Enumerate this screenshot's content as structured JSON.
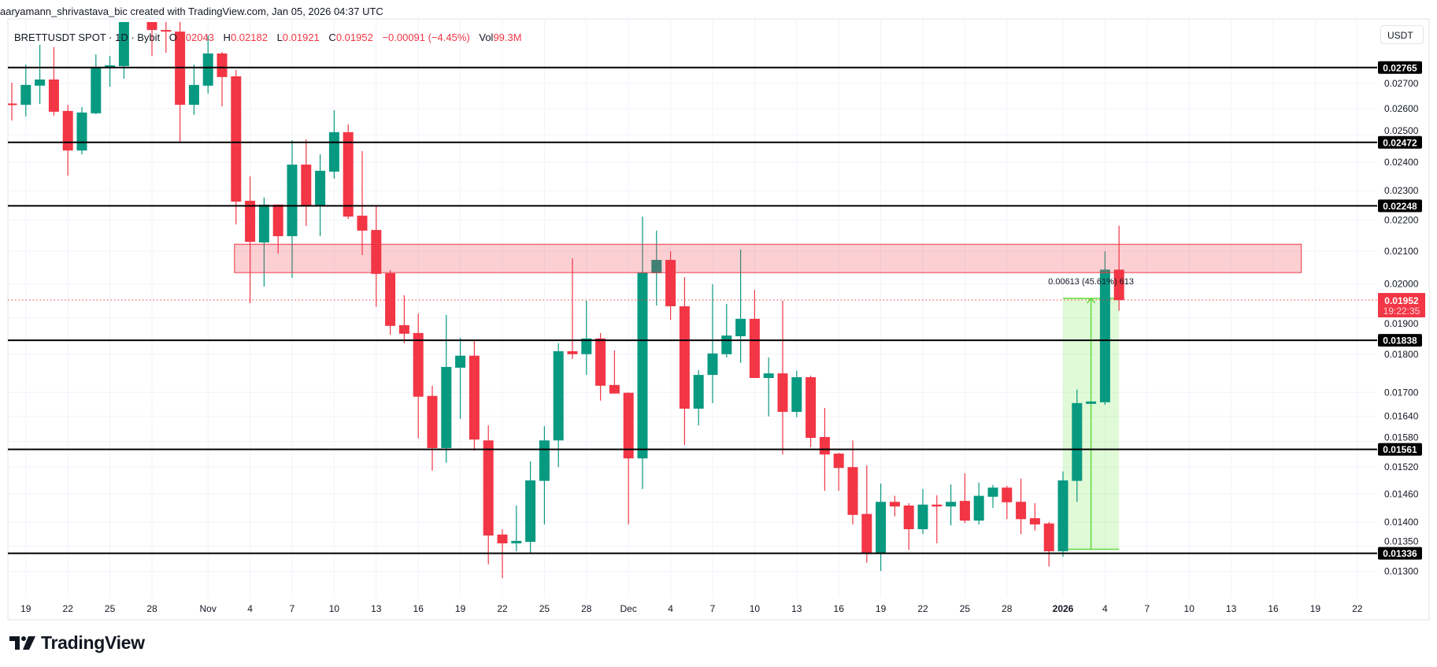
{
  "header": {
    "title": "aaryamann_shrivastava_bic created with TradingView.com, Jan 05, 2026 04:37 UTC"
  },
  "legend": {
    "symbol": "BRETTUSDT SPOT · 1D · Bybit",
    "open_label": "O",
    "open": "0.02043",
    "high_label": "H",
    "high": "0.02182",
    "low_label": "L",
    "low": "0.01921",
    "close_label": "C",
    "close": "0.01952",
    "change": "−0.00091 (−4.45%)",
    "vol_label": "Vol",
    "vol": "99.3M"
  },
  "price_axis": {
    "unit_button": "USDT"
  },
  "footer": {
    "logo_text": "TradingView"
  },
  "colors": {
    "up": "#089981",
    "down": "#f23645",
    "level_line": "#000000",
    "zone_fill": "#f23645",
    "measure": "#5fdc3c"
  },
  "chart_data": {
    "type": "candlestick",
    "title": "",
    "y_scale": "log",
    "ylim": [
      0.0125,
      0.0296
    ],
    "grid": true,
    "y_ticks": [
      "0.02700",
      "0.02600",
      "0.02500",
      "0.02400",
      "0.02300",
      "0.02200",
      "0.02100",
      "0.02000",
      "0.01900",
      "0.01800",
      "0.01700",
      "0.01640",
      "0.01580",
      "0.01520",
      "0.01460",
      "0.01400",
      "0.01350",
      "0.01300"
    ],
    "x_ticks": [
      {
        "label": "19",
        "date": "2025-10-19"
      },
      {
        "label": "22",
        "date": "2025-10-22"
      },
      {
        "label": "25",
        "date": "2025-10-25"
      },
      {
        "label": "28",
        "date": "2025-10-28"
      },
      {
        "label": "Nov",
        "date": "2025-11-01"
      },
      {
        "label": "4",
        "date": "2025-11-04"
      },
      {
        "label": "7",
        "date": "2025-11-07"
      },
      {
        "label": "10",
        "date": "2025-11-10"
      },
      {
        "label": "13",
        "date": "2025-11-13"
      },
      {
        "label": "16",
        "date": "2025-11-16"
      },
      {
        "label": "19",
        "date": "2025-11-19"
      },
      {
        "label": "22",
        "date": "2025-11-22"
      },
      {
        "label": "25",
        "date": "2025-11-25"
      },
      {
        "label": "28",
        "date": "2025-11-28"
      },
      {
        "label": "Dec",
        "date": "2025-12-01"
      },
      {
        "label": "4",
        "date": "2025-12-04"
      },
      {
        "label": "7",
        "date": "2025-12-07"
      },
      {
        "label": "10",
        "date": "2025-12-10"
      },
      {
        "label": "13",
        "date": "2025-12-13"
      },
      {
        "label": "16",
        "date": "2025-12-16"
      },
      {
        "label": "19",
        "date": "2025-12-19"
      },
      {
        "label": "22",
        "date": "2025-12-22"
      },
      {
        "label": "25",
        "date": "2025-12-25"
      },
      {
        "label": "28",
        "date": "2025-12-28"
      },
      {
        "label": "2026",
        "date": "2026-01-01"
      },
      {
        "label": "4",
        "date": "2026-01-04"
      },
      {
        "label": "7",
        "date": "2026-01-07"
      },
      {
        "label": "10",
        "date": "2026-01-10"
      },
      {
        "label": "13",
        "date": "2026-01-13"
      },
      {
        "label": "16",
        "date": "2026-01-16"
      },
      {
        "label": "19",
        "date": "2026-01-19"
      },
      {
        "label": "22",
        "date": "2026-01-22"
      }
    ],
    "first_date": "2025-10-18",
    "candles": [
      [
        0.0262,
        0.02703,
        0.02554,
        0.02618
      ],
      [
        0.02615,
        0.02777,
        0.0257,
        0.02694
      ],
      [
        0.02691,
        0.02861,
        0.02618,
        0.02716
      ],
      [
        0.02716,
        0.02851,
        0.02573,
        0.02588
      ],
      [
        0.02591,
        0.02615,
        0.02352,
        0.02442
      ],
      [
        0.02442,
        0.02606,
        0.02428,
        0.02585
      ],
      [
        0.02582,
        0.0282,
        0.02579,
        0.02768
      ],
      [
        0.02771,
        0.02814,
        0.02687,
        0.02774
      ],
      [
        0.02771,
        0.0315,
        0.02719,
        0.031
      ],
      [
        0.031,
        0.032,
        0.0299,
        0.0302
      ],
      [
        0.0302,
        0.0308,
        0.02814,
        0.02925
      ],
      [
        0.02925,
        0.0299,
        0.02827,
        0.02918
      ],
      [
        0.02918,
        0.0298,
        0.02474,
        0.02615
      ],
      [
        0.02615,
        0.02777,
        0.02576,
        0.02694
      ],
      [
        0.02691,
        0.02902,
        0.02659,
        0.02824
      ],
      [
        0.02824,
        0.0283,
        0.02609,
        0.02726
      ],
      [
        0.02729,
        0.02755,
        0.02186,
        0.02262
      ],
      [
        0.02265,
        0.02349,
        0.01943,
        0.0213
      ],
      [
        0.02128,
        0.02276,
        0.01992,
        0.02252
      ],
      [
        0.02252,
        0.02252,
        0.02093,
        0.02148
      ],
      [
        0.02148,
        0.0248,
        0.02018,
        0.02391
      ],
      [
        0.02391,
        0.02483,
        0.02181,
        0.02249
      ],
      [
        0.02249,
        0.02428,
        0.02148,
        0.02369
      ],
      [
        0.02366,
        0.02594,
        0.02341,
        0.0251
      ],
      [
        0.0251,
        0.02539,
        0.02204,
        0.02212
      ],
      [
        0.02215,
        0.0244,
        0.02088,
        0.02166
      ],
      [
        0.02168,
        0.02249,
        0.01932,
        0.0203
      ],
      [
        0.02032,
        0.02042,
        0.01853,
        0.01878
      ],
      [
        0.0188,
        0.01966,
        0.0183,
        0.01856
      ],
      [
        0.01858,
        0.01913,
        0.01587,
        0.01689
      ],
      [
        0.01691,
        0.01717,
        0.01512,
        0.01564
      ],
      [
        0.01564,
        0.01909,
        0.0153,
        0.01766
      ],
      [
        0.01764,
        0.01845,
        0.01634,
        0.01796
      ],
      [
        0.01796,
        0.01836,
        0.01558,
        0.01584
      ],
      [
        0.01582,
        0.01618,
        0.01314,
        0.01372
      ],
      [
        0.01374,
        0.01385,
        0.01287,
        0.01356
      ],
      [
        0.01356,
        0.01435,
        0.0134,
        0.01361
      ],
      [
        0.01359,
        0.01533,
        0.01337,
        0.0149
      ],
      [
        0.01489,
        0.01616,
        0.01395,
        0.01582
      ],
      [
        0.01582,
        0.0183,
        0.0152,
        0.01808
      ],
      [
        0.01808,
        0.02078,
        0.01787,
        0.018
      ],
      [
        0.018,
        0.0195,
        0.01745,
        0.01843
      ],
      [
        0.01843,
        0.01858,
        0.01679,
        0.01717
      ],
      [
        0.01719,
        0.0181,
        0.01697,
        0.01697
      ],
      [
        0.01699,
        0.017,
        0.01395,
        0.0154
      ],
      [
        0.0154,
        0.02212,
        0.01471,
        0.02034
      ],
      [
        0.02032,
        0.02166,
        0.01936,
        0.02073
      ],
      [
        0.02073,
        0.021,
        0.01895,
        0.01934
      ],
      [
        0.01934,
        0.0202,
        0.01571,
        0.01659
      ],
      [
        0.01659,
        0.01758,
        0.01618,
        0.01745
      ],
      [
        0.01745,
        0.01999,
        0.01673,
        0.01802
      ],
      [
        0.018,
        0.01941,
        0.01791,
        0.01851
      ],
      [
        0.01849,
        0.02105,
        0.01777,
        0.01898
      ],
      [
        0.01898,
        0.01982,
        0.01737,
        0.01737
      ],
      [
        0.01737,
        0.01791,
        0.0164,
        0.01749
      ],
      [
        0.01749,
        0.0195,
        0.01549,
        0.01651
      ],
      [
        0.01651,
        0.01756,
        0.01638,
        0.01739
      ],
      [
        0.01739,
        0.01743,
        0.01566,
        0.01588
      ],
      [
        0.0159,
        0.01661,
        0.01467,
        0.01549
      ],
      [
        0.01551,
        0.01553,
        0.01467,
        0.01518
      ],
      [
        0.0152,
        0.01582,
        0.01395,
        0.01415
      ],
      [
        0.01417,
        0.01524,
        0.01317,
        0.01335
      ],
      [
        0.01335,
        0.01483,
        0.01301,
        0.01443
      ],
      [
        0.01443,
        0.01456,
        0.01412,
        0.01433
      ],
      [
        0.01435,
        0.0144,
        0.01343,
        0.01385
      ],
      [
        0.01385,
        0.01471,
        0.01375,
        0.01437
      ],
      [
        0.01437,
        0.01457,
        0.01356,
        0.01433
      ],
      [
        0.01433,
        0.01481,
        0.01393,
        0.01443
      ],
      [
        0.01445,
        0.01506,
        0.01398,
        0.01403
      ],
      [
        0.01403,
        0.01485,
        0.01395,
        0.01456
      ],
      [
        0.01454,
        0.0148,
        0.0143,
        0.01474
      ],
      [
        0.01474,
        0.01478,
        0.01406,
        0.01442
      ],
      [
        0.01443,
        0.01494,
        0.01375,
        0.01406
      ],
      [
        0.01408,
        0.0144,
        0.01382,
        0.01395
      ],
      [
        0.01397,
        0.014,
        0.0131,
        0.0134
      ],
      [
        0.0134,
        0.0151,
        0.01329,
        0.0149
      ],
      [
        0.01489,
        0.01707,
        0.01443,
        0.01673
      ],
      [
        0.01671,
        0.01677,
        0.01671,
        0.01677
      ],
      [
        0.01675,
        0.021,
        0.01669,
        0.02043
      ],
      [
        0.02043,
        0.02182,
        0.01921,
        0.01952
      ]
    ],
    "levels": [
      "0.02765",
      "0.02472",
      "0.02248",
      "0.01838",
      "0.01561",
      "0.01336"
    ],
    "resistance_zone": {
      "from": "2025-11-03",
      "to": "2026-01-18",
      "top": 0.02122,
      "bottom": 0.02034
    },
    "measure": {
      "from": "2026-01-01",
      "to": "2026-01-05",
      "start_price": 0.01344,
      "end_price": 0.01957,
      "label": "0.00613 (45.61%) 613"
    },
    "last_price": {
      "value": "0.01952",
      "countdown": "19:22:35"
    }
  }
}
